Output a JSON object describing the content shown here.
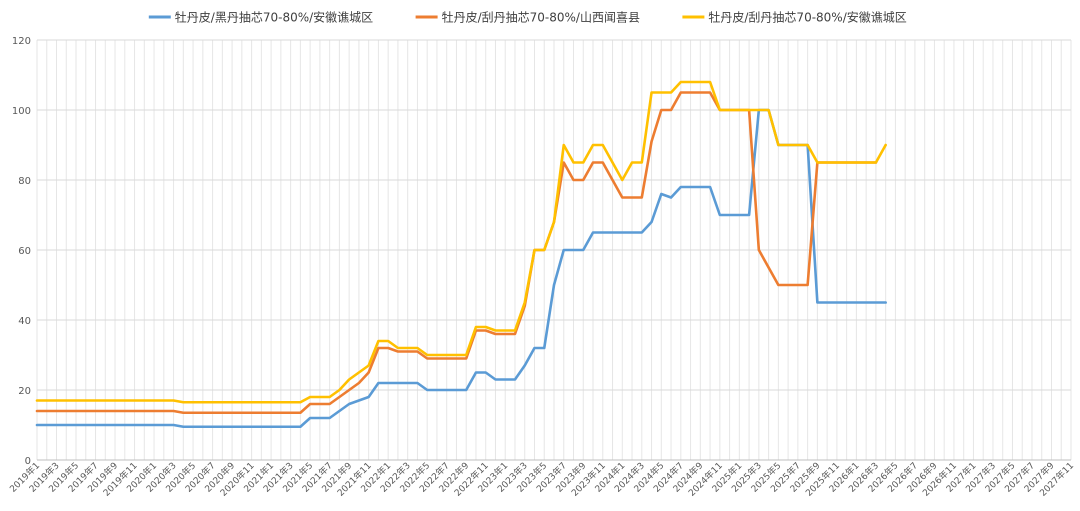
{
  "chart_data": {
    "type": "line",
    "title": "",
    "xlabel": "",
    "ylabel": "",
    "ylim": [
      0,
      120
    ],
    "yticks": [
      0,
      20,
      40,
      60,
      80,
      100,
      120
    ],
    "grid": true,
    "legend_position": "top",
    "x_start": "2019-01",
    "x_end": "2027-11",
    "x_tick_labels": [
      "2019年1",
      "2019年3",
      "2019年5",
      "2019年7",
      "2019年9",
      "2019年11",
      "2020年1",
      "2020年3",
      "2020年5",
      "2020年7",
      "2020年9",
      "2020年11",
      "2021年1",
      "2021年3",
      "2021年5",
      "2021年7",
      "2021年9",
      "2021年11",
      "2022年1",
      "2022年3",
      "2022年5",
      "2022年7",
      "2022年9",
      "2022年11",
      "2023年1",
      "2023年3",
      "2023年5",
      "2023年7",
      "2023年9",
      "2023年11",
      "2024年1",
      "2024年3",
      "2024年5",
      "2024年7",
      "2024年9",
      "2024年11",
      "2025年1",
      "2025年3",
      "2025年5",
      "2025年7",
      "2025年9",
      "2025年11",
      "2026年1",
      "2026年3",
      "2026年5",
      "2026年7",
      "2026年9",
      "2026年11",
      "2027年1",
      "2027年3",
      "2027年5",
      "2027年7",
      "2027年9",
      "2027年11"
    ],
    "series": [
      {
        "name": "牡丹皮/黑丹抽芯70-80%/安徽谯城区",
        "color": "#5B9BD5",
        "points": [
          [
            "2019-01",
            10
          ],
          [
            "2020-03",
            10
          ],
          [
            "2020-04",
            9.5
          ],
          [
            "2021-04",
            9.5
          ],
          [
            "2021-05",
            12
          ],
          [
            "2021-07",
            12
          ],
          [
            "2021-09",
            16
          ],
          [
            "2021-11",
            18
          ],
          [
            "2021-12",
            22
          ],
          [
            "2022-04",
            22
          ],
          [
            "2022-05",
            20
          ],
          [
            "2022-09",
            20
          ],
          [
            "2022-10",
            25
          ],
          [
            "2022-11",
            25
          ],
          [
            "2022-12",
            23
          ],
          [
            "2023-02",
            23
          ],
          [
            "2023-03",
            27
          ],
          [
            "2023-04",
            32
          ],
          [
            "2023-05",
            32
          ],
          [
            "2023-06",
            50
          ],
          [
            "2023-07",
            60
          ],
          [
            "2023-09",
            60
          ],
          [
            "2023-10",
            65
          ],
          [
            "2024-03",
            65
          ],
          [
            "2024-04",
            68
          ],
          [
            "2024-05",
            76
          ],
          [
            "2024-06",
            75
          ],
          [
            "2024-07",
            78
          ],
          [
            "2024-10",
            78
          ],
          [
            "2024-11",
            70
          ],
          [
            "2025-02",
            70
          ],
          [
            "2025-03",
            100
          ],
          [
            "2025-04",
            100
          ],
          [
            "2025-05",
            90
          ],
          [
            "2025-08",
            90
          ],
          [
            "2025-09",
            45
          ],
          [
            "2026-04",
            45
          ]
        ]
      },
      {
        "name": "牡丹皮/刮丹抽芯70-80%/山西闻喜县",
        "color": "#ED7D31",
        "points": [
          [
            "2019-01",
            14
          ],
          [
            "2020-03",
            14
          ],
          [
            "2020-04",
            13.5
          ],
          [
            "2021-04",
            13.5
          ],
          [
            "2021-05",
            16
          ],
          [
            "2021-07",
            16
          ],
          [
            "2021-09",
            20
          ],
          [
            "2021-10",
            22
          ],
          [
            "2021-11",
            25
          ],
          [
            "2021-12",
            32
          ],
          [
            "2022-01",
            32
          ],
          [
            "2022-02",
            31
          ],
          [
            "2022-04",
            31
          ],
          [
            "2022-05",
            29
          ],
          [
            "2022-09",
            29
          ],
          [
            "2022-10",
            37
          ],
          [
            "2022-11",
            37
          ],
          [
            "2022-12",
            36
          ],
          [
            "2023-02",
            36
          ],
          [
            "2023-03",
            44
          ],
          [
            "2023-04",
            60
          ],
          [
            "2023-05",
            60
          ],
          [
            "2023-06",
            68
          ],
          [
            "2023-07",
            85
          ],
          [
            "2023-08",
            80
          ],
          [
            "2023-09",
            80
          ],
          [
            "2023-10",
            85
          ],
          [
            "2023-11",
            85
          ],
          [
            "2024-01",
            75
          ],
          [
            "2024-03",
            75
          ],
          [
            "2024-04",
            91
          ],
          [
            "2024-05",
            100
          ],
          [
            "2024-06",
            100
          ],
          [
            "2024-07",
            105
          ],
          [
            "2024-10",
            105
          ],
          [
            "2024-11",
            100
          ],
          [
            "2025-02",
            100
          ],
          [
            "2025-03",
            60
          ],
          [
            "2025-05",
            50
          ],
          [
            "2025-08",
            50
          ],
          [
            "2025-09",
            85
          ],
          [
            "2026-03",
            85
          ]
        ]
      },
      {
        "name": "牡丹皮/刮丹抽芯70-80%/安徽谯城区",
        "color": "#FFC000",
        "points": [
          [
            "2019-01",
            17
          ],
          [
            "2020-03",
            17
          ],
          [
            "2020-04",
            16.5
          ],
          [
            "2021-04",
            16.5
          ],
          [
            "2021-05",
            18
          ],
          [
            "2021-07",
            18
          ],
          [
            "2021-08",
            20
          ],
          [
            "2021-09",
            23
          ],
          [
            "2021-11",
            27
          ],
          [
            "2021-12",
            34
          ],
          [
            "2022-01",
            34
          ],
          [
            "2022-02",
            32
          ],
          [
            "2022-04",
            32
          ],
          [
            "2022-05",
            30
          ],
          [
            "2022-09",
            30
          ],
          [
            "2022-10",
            38
          ],
          [
            "2022-11",
            38
          ],
          [
            "2022-12",
            37
          ],
          [
            "2023-02",
            37
          ],
          [
            "2023-03",
            45
          ],
          [
            "2023-04",
            60
          ],
          [
            "2023-05",
            60
          ],
          [
            "2023-06",
            68
          ],
          [
            "2023-07",
            90
          ],
          [
            "2023-08",
            85
          ],
          [
            "2023-09",
            85
          ],
          [
            "2023-10",
            90
          ],
          [
            "2023-11",
            90
          ],
          [
            "2024-01",
            80
          ],
          [
            "2024-02",
            85
          ],
          [
            "2024-03",
            85
          ],
          [
            "2024-04",
            105
          ],
          [
            "2024-06",
            105
          ],
          [
            "2024-07",
            108
          ],
          [
            "2024-10",
            108
          ],
          [
            "2024-11",
            100
          ],
          [
            "2025-04",
            100
          ],
          [
            "2025-05",
            90
          ],
          [
            "2025-08",
            90
          ],
          [
            "2025-09",
            85
          ],
          [
            "2026-03",
            85
          ],
          [
            "2026-04",
            90
          ]
        ]
      }
    ]
  }
}
